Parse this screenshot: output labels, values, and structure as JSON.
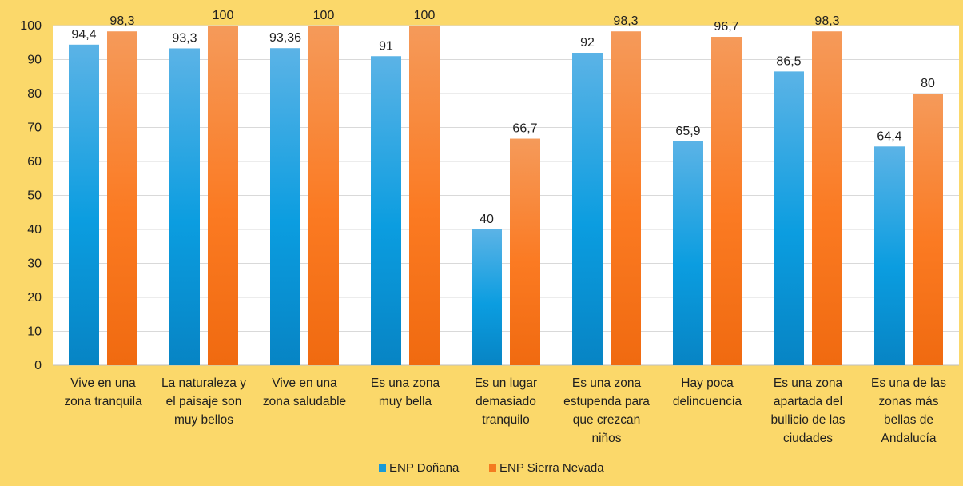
{
  "chart_data": {
    "type": "bar",
    "title": "",
    "xlabel": "",
    "ylabel": "",
    "ylim": [
      0,
      100
    ],
    "yticks": [
      0,
      10,
      20,
      30,
      40,
      50,
      60,
      70,
      80,
      90,
      100
    ],
    "grid": true,
    "legend_position": "bottom",
    "categories": [
      [
        "Vive en una",
        "zona tranquila"
      ],
      [
        "La naturaleza y",
        "el paisaje son",
        "muy bellos"
      ],
      [
        "Vive en una",
        "zona saludable"
      ],
      [
        "Es una zona",
        "muy bella"
      ],
      [
        "Es un lugar",
        "demasiado",
        "tranquilo"
      ],
      [
        "Es una zona",
        "estupenda para",
        "que crezcan",
        "niños"
      ],
      [
        "Hay poca",
        "delincuencia"
      ],
      [
        "Es una zona",
        "apartada del",
        "bullicio de las",
        "ciudades"
      ],
      [
        "Es una de las",
        "zonas más",
        "bellas de",
        "Andalucía"
      ]
    ],
    "series": [
      {
        "name": "ENP Doñana",
        "color": "#1a9ad6",
        "values": [
          94.4,
          93.3,
          93.36,
          91,
          40,
          92,
          65.9,
          86.5,
          64.4
        ],
        "labels": [
          "94,4",
          "93,3",
          "93,36",
          "91",
          "40",
          "92",
          "65,9",
          "86,5",
          "64,4"
        ]
      },
      {
        "name": "ENP Sierra Nevada",
        "color": "#f47b20",
        "values": [
          98.3,
          100,
          100,
          100,
          66.7,
          98.3,
          96.7,
          98.3,
          80
        ],
        "labels": [
          "98,3",
          "100",
          "100",
          "100",
          "66,7",
          "98,3",
          "96,7",
          "98,3",
          "80"
        ]
      }
    ]
  }
}
